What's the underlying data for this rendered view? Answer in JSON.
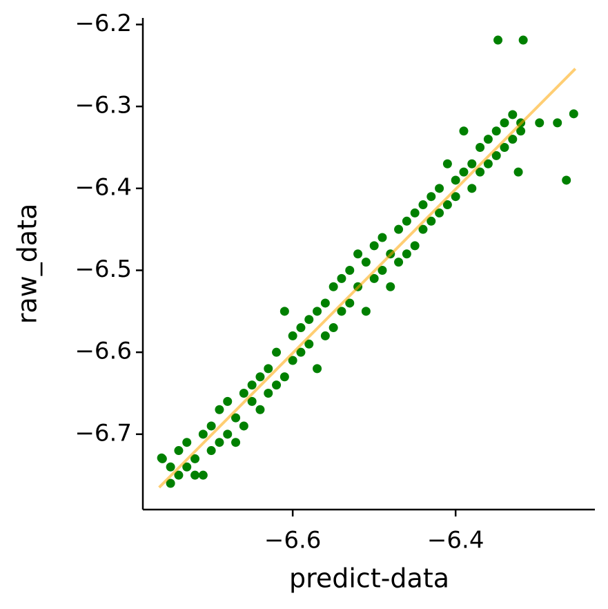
{
  "chart_data": {
    "type": "scatter",
    "x_label": "predict-data",
    "y_label": "raw_data",
    "xlim": [
      -6.784,
      -6.229
    ],
    "ylim": [
      -6.792,
      -6.192
    ],
    "xticks": [
      {
        "value": -6.6,
        "label": "−6.6"
      },
      {
        "value": -6.4,
        "label": "−6.4"
      }
    ],
    "yticks": [
      {
        "value": -6.7,
        "label": "−6.7"
      },
      {
        "value": -6.6,
        "label": "−6.6"
      },
      {
        "value": -6.5,
        "label": "−6.5"
      },
      {
        "value": -6.4,
        "label": "−6.4"
      },
      {
        "value": -6.3,
        "label": "−6.3"
      },
      {
        "value": -6.2,
        "label": "−6.2"
      }
    ],
    "series": [
      {
        "type": "scatter",
        "color": "#008000",
        "x": [
          -6.76,
          -6.75,
          -6.75,
          -6.74,
          -6.74,
          -6.73,
          -6.73,
          -6.72,
          -6.72,
          -6.71,
          -6.71,
          -6.7,
          -6.7,
          -6.69,
          -6.69,
          -6.68,
          -6.68,
          -6.67,
          -6.67,
          -6.66,
          -6.66,
          -6.65,
          -6.65,
          -6.64,
          -6.64,
          -6.63,
          -6.63,
          -6.62,
          -6.62,
          -6.61,
          -6.61,
          -6.6,
          -6.6,
          -6.59,
          -6.59,
          -6.58,
          -6.58,
          -6.57,
          -6.57,
          -6.56,
          -6.56,
          -6.55,
          -6.55,
          -6.54,
          -6.54,
          -6.53,
          -6.53,
          -6.52,
          -6.52,
          -6.51,
          -6.51,
          -6.5,
          -6.5,
          -6.49,
          -6.49,
          -6.48,
          -6.48,
          -6.47,
          -6.47,
          -6.46,
          -6.46,
          -6.45,
          -6.45,
          -6.44,
          -6.44,
          -6.43,
          -6.43,
          -6.42,
          -6.42,
          -6.41,
          -6.41,
          -6.4,
          -6.4,
          -6.39,
          -6.39,
          -6.38,
          -6.38,
          -6.37,
          -6.37,
          -6.36,
          -6.36,
          -6.35,
          -6.35,
          -6.34,
          -6.34,
          -6.33,
          -6.33,
          -6.32,
          -6.32,
          -6.348,
          -6.317,
          -6.255,
          -6.275,
          -6.264,
          -6.297,
          -6.323,
          -6.761
        ],
        "y": [
          -6.73,
          -6.76,
          -6.74,
          -6.72,
          -6.75,
          -6.71,
          -6.74,
          -6.75,
          -6.73,
          -6.7,
          -6.75,
          -6.72,
          -6.69,
          -6.67,
          -6.71,
          -6.7,
          -6.66,
          -6.68,
          -6.71,
          -6.65,
          -6.69,
          -6.66,
          -6.64,
          -6.67,
          -6.63,
          -6.65,
          -6.62,
          -6.64,
          -6.6,
          -6.55,
          -6.63,
          -6.61,
          -6.58,
          -6.6,
          -6.57,
          -6.59,
          -6.56,
          -6.62,
          -6.55,
          -6.58,
          -6.54,
          -6.52,
          -6.57,
          -6.55,
          -6.51,
          -6.54,
          -6.5,
          -6.52,
          -6.48,
          -6.55,
          -6.49,
          -6.51,
          -6.47,
          -6.5,
          -6.46,
          -6.48,
          -6.52,
          -6.45,
          -6.49,
          -6.44,
          -6.48,
          -6.43,
          -6.47,
          -6.42,
          -6.45,
          -6.41,
          -6.44,
          -6.4,
          -6.43,
          -6.37,
          -6.42,
          -6.39,
          -6.41,
          -6.38,
          -6.33,
          -6.37,
          -6.4,
          -6.35,
          -6.38,
          -6.34,
          -6.37,
          -6.33,
          -6.36,
          -6.32,
          -6.35,
          -6.31,
          -6.34,
          -6.32,
          -6.33,
          -6.219,
          -6.219,
          -6.309,
          -6.32,
          -6.39,
          -6.32,
          -6.38,
          -6.729
        ]
      },
      {
        "type": "line",
        "color": "#ffa500",
        "x": [
          -6.764,
          -6.253
        ],
        "y": [
          -6.765,
          -6.254
        ]
      }
    ]
  }
}
